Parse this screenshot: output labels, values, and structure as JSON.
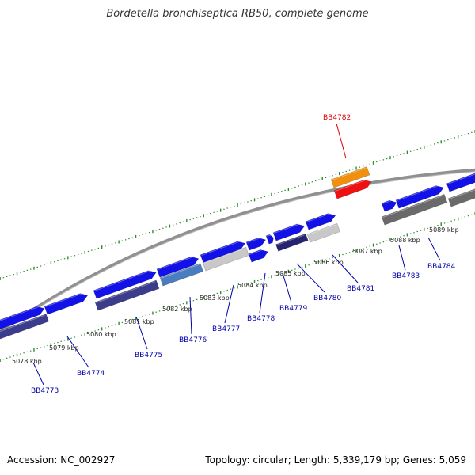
{
  "title": "Bordetella bronchiseptica RB50, complete genome",
  "footer": {
    "accession": "Accession: NC_002927",
    "summary": "Topology: circular; Length: 5,339,179 bp; Genes: 5,059"
  },
  "colors": {
    "background": "#ffffff",
    "backbone": "#888888",
    "tick": "#2e8b2e",
    "gene_label": "#0000aa",
    "highlight_label": "#dd0000",
    "forward_cds": "#1212e8",
    "reverse_cds": "#3c3c8c",
    "rna": "#c8c8c8",
    "pseudo": "#6a6a6a",
    "highlight": "#f0900c",
    "highlight_cds": "#ee1111"
  },
  "kbp_labels": [
    "5078 kbp",
    "5079 kbp",
    "5080 kbp",
    "5081 kbp",
    "5082 kbp",
    "5083 kbp",
    "5084 kbp",
    "5085 kbp",
    "5086 kbp",
    "5087 kbp",
    "5088 kbp",
    "5089 kbp"
  ],
  "gene_labels": [
    "BB4773",
    "BB4774",
    "BB4775",
    "BB4776",
    "BB4777",
    "BB4778",
    "BB4779",
    "BB4780",
    "BB4781",
    "BB4782",
    "BB4783",
    "BB4784"
  ],
  "highlighted_gene": "BB4782"
}
